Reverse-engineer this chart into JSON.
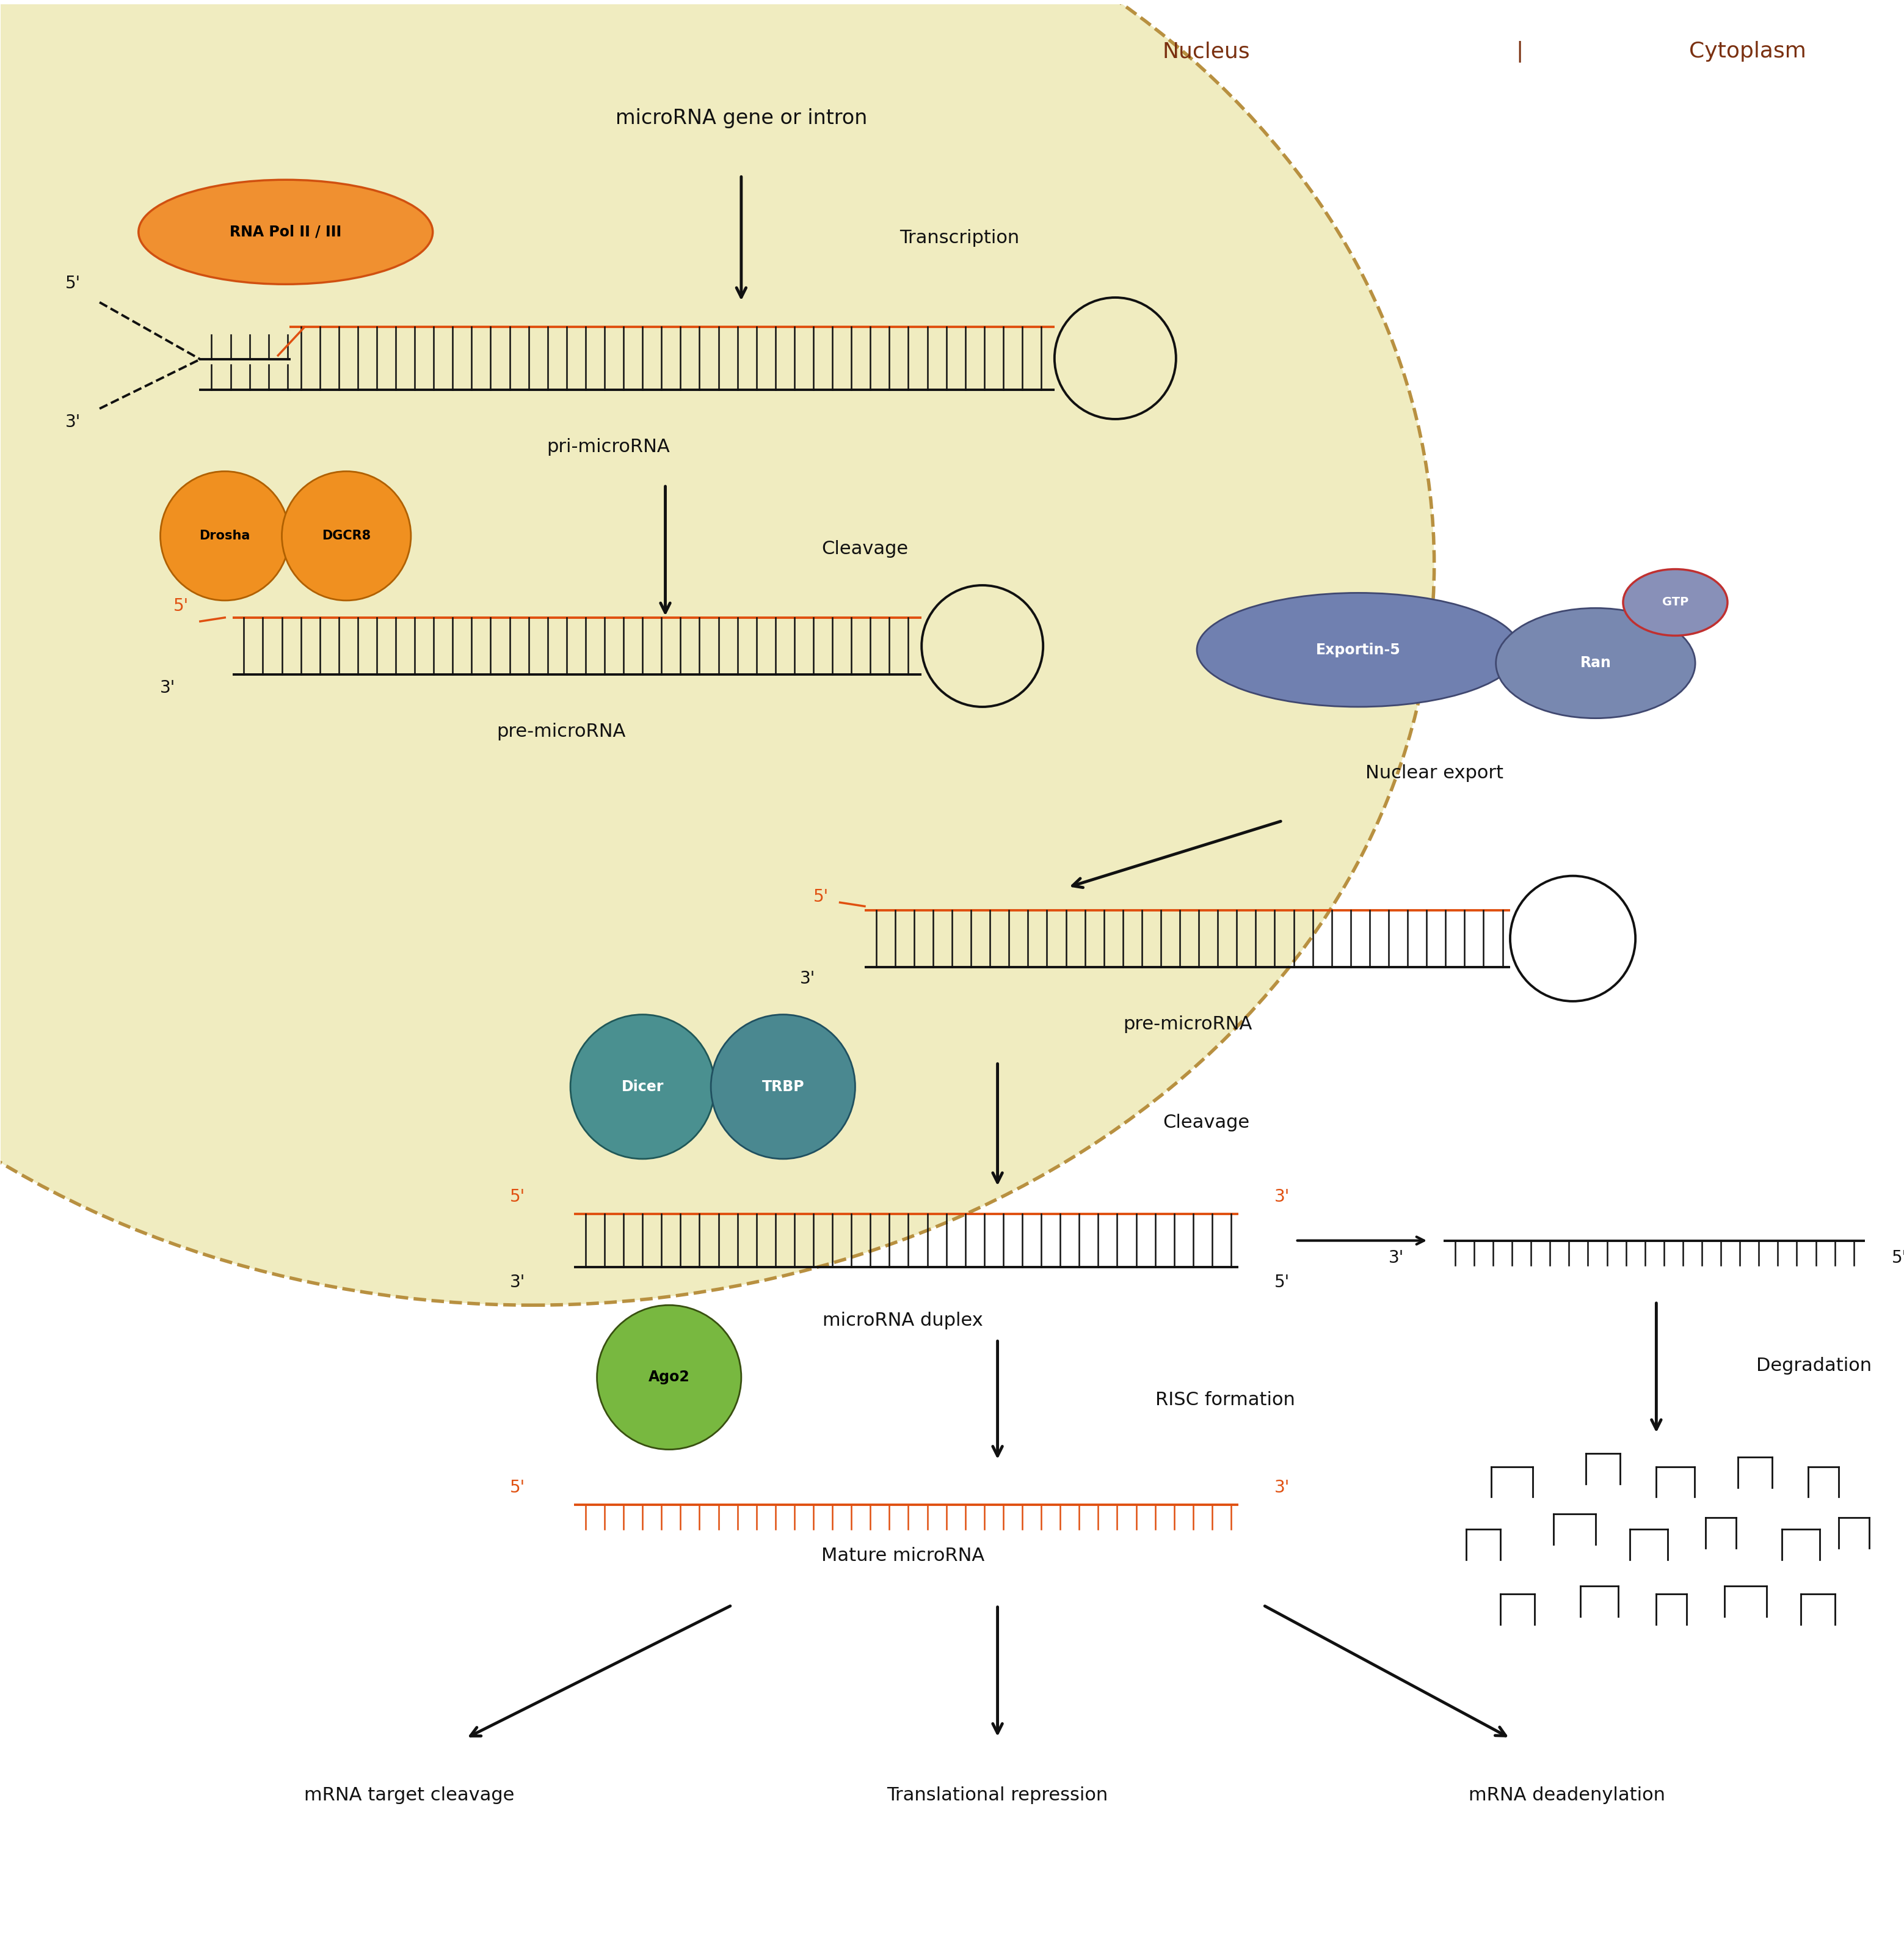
{
  "bg_color": "#ffffff",
  "nucleus_fill": "#f0ecc0",
  "nucleus_border": "#b89040",
  "nucleus_label": "Nucleus",
  "cytoplasm_label": "Cytoplasm",
  "rna_orange": "#e05010",
  "black": "#111111",
  "text_labels": {
    "mirna_gene": "microRNA gene or intron",
    "transcription": "Transcription",
    "pri_mirna": "pri-microRNA",
    "cleavage1": "Cleavage",
    "pre_mirna1": "pre-microRNA",
    "nuclear_export": "Nuclear export",
    "pre_mirna2": "pre-microRNA",
    "cleavage2": "Cleavage",
    "mirna_duplex": "microRNA duplex",
    "risc": "RISC formation",
    "mature_mirna": "Mature microRNA",
    "degradation": "Degradation",
    "target_cleavage": "mRNA target cleavage",
    "trans_repression": "Translational repression",
    "deadenylation": "mRNA deadenylation"
  },
  "protein_labels": {
    "rna_pol": "RNA Pol II / III",
    "drosha": "Drosha",
    "dgcr8": "DGCR8",
    "exportin5": "Exportin-5",
    "ran": "Ran",
    "gtp": "GTP",
    "dicer": "Dicer",
    "trbp": "TRBP",
    "ago2": "Ago2"
  },
  "colors": {
    "rna_pol_fill": "#f09030",
    "rna_pol_edge": "#d05010",
    "drosha_fill": "#f09020",
    "drosha_edge": "#b06000",
    "dgcr8_fill": "#f09020",
    "dgcr8_edge": "#b06000",
    "exportin5_fill": "#7080b0",
    "exportin5_edge": "#404870",
    "ran_fill": "#7888b0",
    "ran_edge": "#404870",
    "gtp_fill": "#8890b8",
    "gtp_edge": "#c03030",
    "dicer_fill": "#4a9090",
    "dicer_edge": "#205858",
    "trbp_fill": "#4a8890",
    "trbp_edge": "#205060",
    "ago2_fill": "#78b840",
    "ago2_edge": "#385010"
  }
}
